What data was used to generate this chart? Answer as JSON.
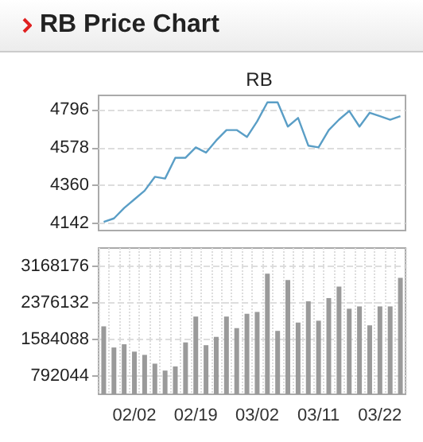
{
  "chart_data": [
    {
      "type": "line",
      "title": "RB Price Chart",
      "subtitle": "RB",
      "categories": [
        null,
        null,
        null,
        null,
        null,
        null,
        null,
        null,
        null,
        null,
        null,
        null,
        null,
        null,
        null,
        null,
        null,
        null,
        null,
        null,
        null,
        null,
        null,
        null,
        null,
        null,
        null,
        null,
        null,
        null
      ],
      "series": [
        {
          "color": "#5a9ec6",
          "values": [
            4150,
            4170,
            4230,
            4280,
            4330,
            4410,
            4400,
            4520,
            4520,
            4580,
            4550,
            4620,
            4680,
            4680,
            4640,
            4730,
            4840,
            4840,
            4700,
            4750,
            4590,
            4580,
            4680,
            4740,
            4790,
            4700,
            4780,
            4760,
            4740,
            4760
          ]
        }
      ],
      "ylim": [
        4100,
        4880
      ],
      "yticks": [
        4142,
        4360,
        4578,
        4796
      ],
      "grid": "y",
      "tick_labels": "y"
    },
    {
      "type": "bar",
      "categories": [
        null,
        null,
        null,
        "02/02",
        null,
        null,
        null,
        null,
        null,
        "02/19",
        null,
        null,
        null,
        null,
        null,
        "03/02",
        null,
        null,
        null,
        null,
        null,
        "03/11",
        null,
        null,
        null,
        null,
        null,
        "03/22",
        null,
        null
      ],
      "series": [
        {
          "color": "#9a9a9a",
          "values": [
            1870000,
            1410000,
            1480000,
            1320000,
            1250000,
            1060000,
            910000,
            1000000,
            1520000,
            2080000,
            1460000,
            1640000,
            2080000,
            1830000,
            2140000,
            2180000,
            3010000,
            1770000,
            2870000,
            1950000,
            2410000,
            1990000,
            2480000,
            2730000,
            2250000,
            2300000,
            1890000,
            2300000,
            2300000,
            2920000
          ]
        }
      ],
      "ylim": [
        396022,
        3564198
      ],
      "yticks": [
        792044,
        1584088,
        2376132,
        3168176
      ],
      "grid": true
    }
  ]
}
